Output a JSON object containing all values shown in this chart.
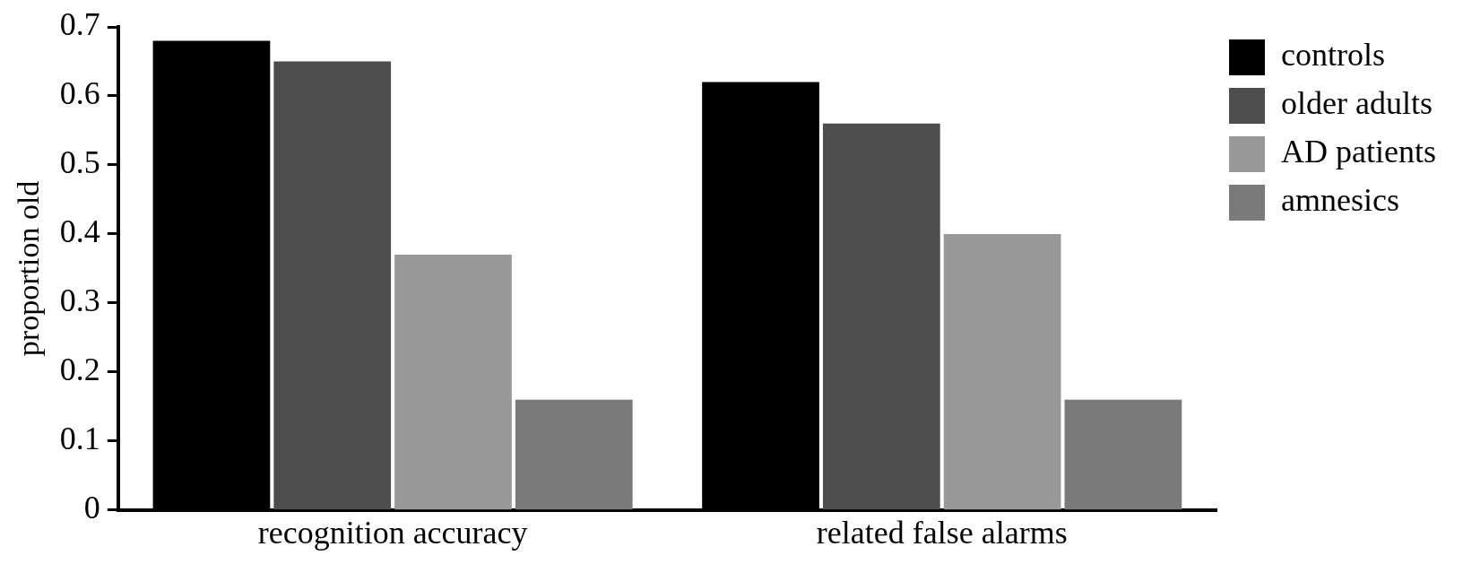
{
  "chart_data": {
    "type": "bar",
    "ylabel": "proportion old",
    "categories": [
      "recognition accuracy",
      "related false alarms"
    ],
    "series": [
      {
        "name": "controls",
        "color": "#000000",
        "values": [
          0.68,
          0.62
        ]
      },
      {
        "name": "older adults",
        "color": "#4d4d4d",
        "values": [
          0.65,
          0.56
        ]
      },
      {
        "name": "AD patients",
        "color": "#999999",
        "values": [
          0.37,
          0.4
        ]
      },
      {
        "name": "amnesics",
        "color": "#7a7a7a",
        "values": [
          0.16,
          0.16
        ]
      }
    ],
    "ylim": [
      0,
      0.7
    ],
    "yticks": [
      {
        "value": 0,
        "label": "0"
      },
      0.1,
      0.2,
      0.3,
      0.4,
      0.5,
      0.6,
      0.7
    ],
    "grid": false,
    "legend": "top right"
  }
}
